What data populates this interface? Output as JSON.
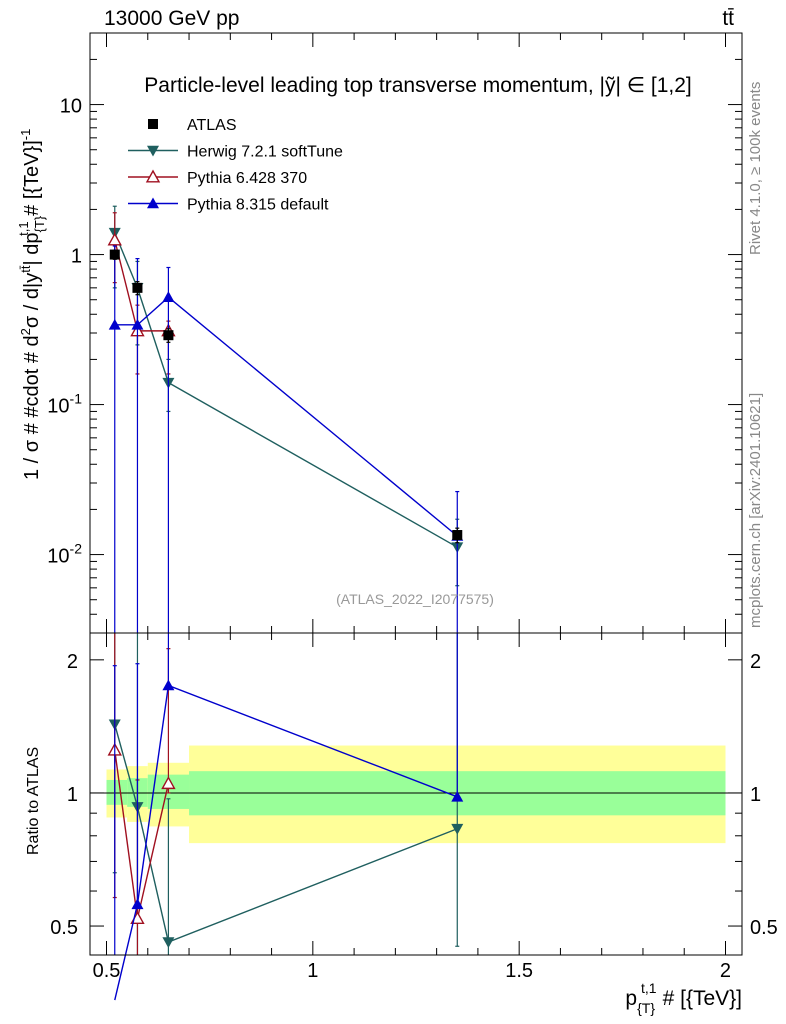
{
  "header": {
    "energy_label": "13000 GeV pp",
    "process_label": "tt̄"
  },
  "side_text": {
    "rivet": "Rivet 4.1.0, ≥ 100k events",
    "mcplots": "mcplots.cern.ch [arXiv:2401.10621]"
  },
  "colors": {
    "atlas": "#000000",
    "herwig": "#1f5f5f",
    "pythia6": "#a01020",
    "pythia8": "#0000cc",
    "band_inner": "#99ff99",
    "band_outer": "#ffff99"
  },
  "chart_data": [
    {
      "type": "line",
      "panel": "main",
      "title": "Particle-level leading top transverse momentum, |y^{tt̄}| ∈ [1,2]",
      "title_display": "Particle-level leading top transverse momentum, |ỹ| ∈ [1,2]",
      "ylabel": "1 / σ # #cdot # d²σ / d|y^{tt̄}| dp_{T}^{t,1} # [{TeV}]⁻¹",
      "ylabel_parts": {
        "p1": "1 / σ # #cdot # d",
        "p1sup": "2",
        "p2": "σ / d|y",
        "p2sup": "tt̄",
        "p3": "| dp",
        "p3sub": "{T}",
        "p3sup": "t,1",
        "p4": " # [{TeV}]",
        "p4sup": "-1"
      },
      "yscale": "log",
      "ylim": [
        0.003,
        30
      ],
      "xlim": [
        0.46,
        2.04
      ],
      "yticks": [
        {
          "base": "10",
          "exp": "-2",
          "value": 0.01
        },
        {
          "base": "10",
          "exp": "-1",
          "value": 0.1
        },
        {
          "base": "1",
          "exp": "",
          "value": 1
        },
        {
          "base": "10",
          "exp": "",
          "value": 10
        }
      ],
      "watermark": "(ATLAS_2022_I2077575)",
      "legend": [
        "ATLAS",
        "Herwig 7.2.1 softTune",
        "Pythia 6.428 370",
        "Pythia 8.315 default"
      ],
      "series": [
        {
          "name": "ATLAS",
          "marker": "square",
          "x": [
            0.52,
            0.575,
            0.65,
            1.35
          ],
          "y": [
            1.0,
            0.6,
            0.29,
            0.0135
          ],
          "err": [
            0.07,
            0.06,
            0.03,
            0.0015
          ]
        },
        {
          "name": "Herwig 7.2.1 softTune",
          "marker": "triangle-down",
          "x": [
            0.52,
            0.575,
            0.65,
            1.35
          ],
          "y": [
            1.4,
            0.6,
            0.14,
            0.0112
          ],
          "elow": [
            0.8,
            0.35,
            0.05,
            0.005
          ],
          "ehigh": [
            0.7,
            0.3,
            0.06,
            0.006
          ]
        },
        {
          "name": "Pythia 6.428 370",
          "marker": "triangle-open",
          "x": [
            0.52,
            0.575,
            0.65
          ],
          "y": [
            1.25,
            0.31,
            0.31
          ],
          "elow": [
            0.6,
            0.15,
            0.15
          ],
          "ehigh": [
            0.65,
            0.15,
            0.05
          ]
        },
        {
          "name": "Pythia 8.315 default",
          "marker": "triangle-up",
          "x": [
            0.52,
            0.575,
            0.65,
            1.35
          ],
          "y": [
            0.34,
            0.34,
            0.52,
            0.0133
          ],
          "elow": [
            0.3399,
            0.3399,
            0.5199,
            0.0133
          ],
          "ehigh": [
            0.8,
            0.6,
            0.3,
            0.013
          ]
        }
      ]
    },
    {
      "type": "line",
      "panel": "ratio",
      "ylabel": "Ratio to ATLAS",
      "xlabel": "p_{T}^{t,1} # [{TeV}]",
      "xlabel_parts": {
        "p": "p",
        "sub": "{T}",
        "sup": "t,1",
        "rest": "# [{TeV}]"
      },
      "xlim": [
        0.46,
        2.04
      ],
      "ylim": [
        0.43,
        2.3
      ],
      "yscale": "log",
      "yticks": [
        {
          "label": "0.5",
          "value": 0.5
        },
        {
          "label": "1",
          "value": 1
        },
        {
          "label": "2",
          "value": 2
        }
      ],
      "xticks": [
        {
          "label": "0.5",
          "value": 0.5
        },
        {
          "label": "1",
          "value": 1
        },
        {
          "label": "1.5",
          "value": 1.5
        },
        {
          "label": "2",
          "value": 2
        }
      ],
      "bands": [
        {
          "x0": 0.5,
          "x1": 0.55,
          "in_lo": 0.94,
          "in_hi": 1.07,
          "out_lo": 0.88,
          "out_hi": 1.13
        },
        {
          "x0": 0.55,
          "x1": 0.6,
          "in_lo": 0.93,
          "in_hi": 1.08,
          "out_lo": 0.86,
          "out_hi": 1.15
        },
        {
          "x0": 0.6,
          "x1": 0.7,
          "in_lo": 0.92,
          "in_hi": 1.1,
          "out_lo": 0.84,
          "out_hi": 1.17
        },
        {
          "x0": 0.7,
          "x1": 2.0,
          "in_lo": 0.89,
          "in_hi": 1.12,
          "out_lo": 0.77,
          "out_hi": 1.28
        }
      ],
      "series": [
        {
          "name": "Herwig 7.2.1 softTune",
          "marker": "triangle-down",
          "x": [
            0.52,
            0.575,
            0.65,
            1.35
          ],
          "y": [
            1.43,
            0.93,
            0.46,
            0.83
          ],
          "elow": [
            0.77,
            0.5,
            0.03,
            0.38
          ],
          "ehigh": [
            2.0,
            1.6,
            0.51,
            1.65
          ]
        },
        {
          "name": "Pythia 6.428 370",
          "marker": "triangle-open",
          "x": [
            0.52,
            0.575,
            0.65
          ],
          "y": [
            1.25,
            0.52,
            1.05
          ],
          "elow": [
            0.67,
            0.2,
            0.05
          ],
          "ehigh": [
            1.9,
            0.55,
            1.07
          ]
        },
        {
          "name": "Pythia 8.315 default",
          "marker": "triangle-up",
          "x": [
            0.52,
            0.575,
            0.65,
            1.35
          ],
          "y": [
            0.34,
            0.56,
            1.75,
            0.98
          ],
          "elow": [
            0.001,
            0.001,
            0.001,
            0.001
          ],
          "ehigh": [
            1.6,
            1.4,
            3.5,
            1.95
          ]
        }
      ]
    }
  ]
}
